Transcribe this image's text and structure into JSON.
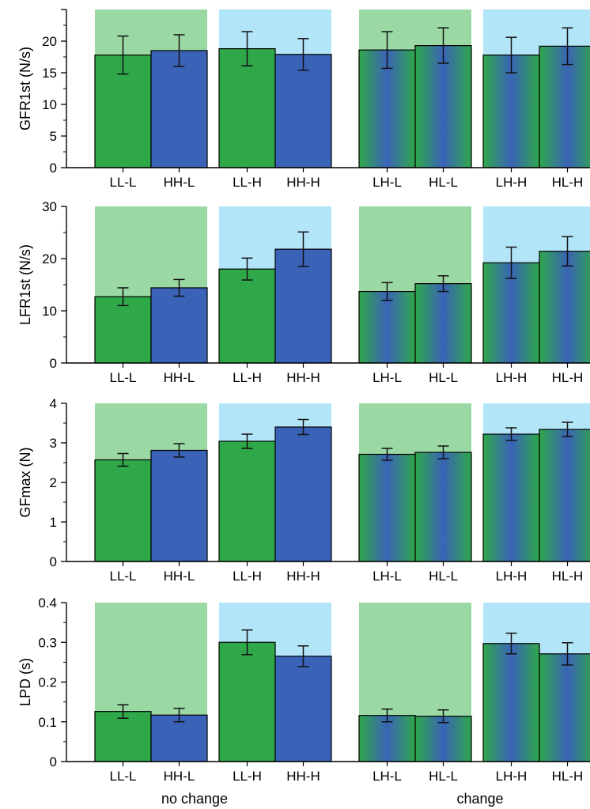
{
  "colors": {
    "low_bg": "#9ad9a3",
    "high_bg": "#b3e5f8",
    "green_bar": "#2fa84a",
    "blue_bar": "#3a63b8",
    "stroke": "#000000"
  },
  "group_labels": [
    "no change",
    "change"
  ],
  "chart_data": [
    {
      "type": "bar",
      "ylabel": "GFR1st (N/s)",
      "ylim": [
        0,
        25
      ],
      "yticks": [
        0,
        5,
        10,
        15,
        20
      ],
      "categories": [
        "LL-L",
        "HH-L",
        "LL-H",
        "HH-H",
        "LH-L",
        "HL-L",
        "LH-H",
        "HL-H"
      ],
      "values": [
        17.8,
        18.5,
        18.8,
        17.9,
        18.6,
        19.3,
        17.8,
        19.2
      ],
      "errors": [
        3.0,
        2.5,
        2.7,
        2.5,
        2.9,
        2.8,
        2.8,
        2.9
      ],
      "bar_colors": [
        "green",
        "blue",
        "green",
        "blue",
        "gradient",
        "gradient",
        "gradient",
        "gradient"
      ],
      "backgrounds": [
        "low",
        "high",
        "low",
        "high"
      ]
    },
    {
      "type": "bar",
      "ylabel": "LFR1st (N/s)",
      "ylim": [
        0,
        30
      ],
      "yticks": [
        0,
        10,
        20,
        30
      ],
      "categories": [
        "LL-L",
        "HH-L",
        "LL-H",
        "HH-H",
        "LH-L",
        "HL-L",
        "LH-H",
        "HL-H"
      ],
      "values": [
        12.7,
        14.4,
        18.0,
        21.8,
        13.7,
        15.2,
        19.2,
        21.4
      ],
      "errors": [
        1.7,
        1.6,
        2.1,
        3.3,
        1.7,
        1.5,
        3.0,
        2.8
      ],
      "bar_colors": [
        "green",
        "blue",
        "green",
        "blue",
        "gradient",
        "gradient",
        "gradient",
        "gradient"
      ],
      "backgrounds": [
        "low",
        "high",
        "low",
        "high"
      ]
    },
    {
      "type": "bar",
      "ylabel": "GFmax (N)",
      "ylim": [
        0,
        4
      ],
      "yticks": [
        0,
        1,
        2,
        3,
        4
      ],
      "categories": [
        "LL-L",
        "HH-L",
        "LL-H",
        "HH-H",
        "LH-L",
        "HL-L",
        "LH-H",
        "HL-H"
      ],
      "values": [
        2.57,
        2.81,
        3.04,
        3.4,
        2.71,
        2.76,
        3.22,
        3.34
      ],
      "errors": [
        0.16,
        0.17,
        0.18,
        0.19,
        0.15,
        0.16,
        0.16,
        0.18
      ],
      "bar_colors": [
        "green",
        "blue",
        "green",
        "blue",
        "gradient",
        "gradient",
        "gradient",
        "gradient"
      ],
      "backgrounds": [
        "low",
        "high",
        "low",
        "high"
      ]
    },
    {
      "type": "bar",
      "ylabel": "LPD (s)",
      "ylim": [
        0,
        0.4
      ],
      "yticks": [
        "0",
        "0.1",
        "0.2",
        "0.3",
        "0.4"
      ],
      "categories": [
        "LL-L",
        "HH-L",
        "LL-H",
        "HH-H",
        "LH-L",
        "HL-L",
        "LH-H",
        "HL-H"
      ],
      "values": [
        0.126,
        0.117,
        0.3,
        0.265,
        0.116,
        0.114,
        0.297,
        0.271
      ],
      "errors": [
        0.017,
        0.017,
        0.031,
        0.026,
        0.016,
        0.016,
        0.026,
        0.028
      ],
      "bar_colors": [
        "green",
        "blue",
        "green",
        "blue",
        "gradient",
        "gradient",
        "gradient",
        "gradient"
      ],
      "backgrounds": [
        "low",
        "high",
        "low",
        "high"
      ]
    }
  ]
}
